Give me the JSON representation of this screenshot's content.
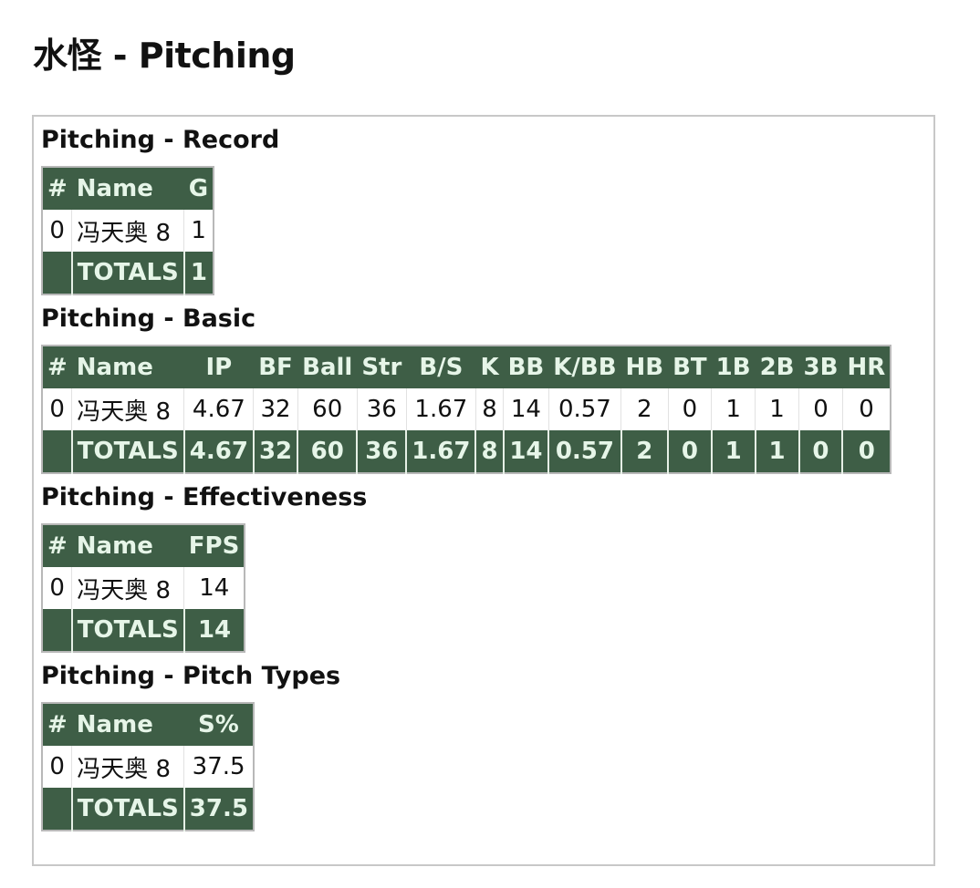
{
  "title": "水怪 - Pitching",
  "colors": {
    "header_bg": "#3e5e46",
    "header_text": "#e6f5e8"
  },
  "sections": [
    {
      "title": "Pitching - Record",
      "columns": [
        "#",
        "Name",
        "G"
      ],
      "rows": [
        [
          "0",
          "冯天奥 8",
          "1"
        ]
      ],
      "totals": [
        "",
        "TOTALS",
        "1"
      ]
    },
    {
      "title": "Pitching - Basic",
      "columns": [
        "#",
        "Name",
        "IP",
        "BF",
        "Ball",
        "Str",
        "B/S",
        "K",
        "BB",
        "K/BB",
        "HB",
        "BT",
        "1B",
        "2B",
        "3B",
        "HR"
      ],
      "rows": [
        [
          "0",
          "冯天奥 8",
          "4.67",
          "32",
          "60",
          "36",
          "1.67",
          "8",
          "14",
          "0.57",
          "2",
          "0",
          "1",
          "1",
          "0",
          "0"
        ]
      ],
      "totals": [
        "",
        "TOTALS",
        "4.67",
        "32",
        "60",
        "36",
        "1.67",
        "8",
        "14",
        "0.57",
        "2",
        "0",
        "1",
        "1",
        "0",
        "0"
      ]
    },
    {
      "title": "Pitching - Effectiveness",
      "columns": [
        "#",
        "Name",
        "FPS"
      ],
      "rows": [
        [
          "0",
          "冯天奥 8",
          "14"
        ]
      ],
      "totals": [
        "",
        "TOTALS",
        "14"
      ]
    },
    {
      "title": "Pitching - Pitch Types",
      "columns": [
        "#",
        "Name",
        "S%"
      ],
      "rows": [
        [
          "0",
          "冯天奥 8",
          "37.5"
        ]
      ],
      "totals": [
        "",
        "TOTALS",
        "37.5"
      ]
    }
  ]
}
